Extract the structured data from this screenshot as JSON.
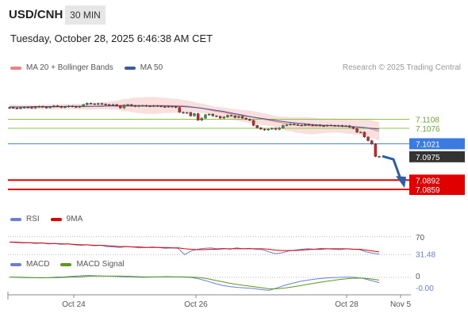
{
  "header": {
    "symbol": "USD/CNH",
    "interval": "30 MIN",
    "datetime": "Tuesday, October 28, 2025 6:46:38 AM CET",
    "credit": "Research © 2025 Trading Central"
  },
  "colors": {
    "bollinger": "#f4b8b8",
    "ma20": "#f08080",
    "ma50": "#3a5a9a",
    "support_resistance": "#e00000",
    "blue_level": "#3b7be0",
    "green_level": "#8bc34a",
    "rsi": "#6b7fd6",
    "rsi_ma": "#e00000",
    "macd": "#6b7fd6",
    "macd_signal": "#5a9a1a",
    "arrow": "#2a5ea8"
  },
  "chart_data": [
    {
      "type": "candlestick",
      "name": "price",
      "legend": [
        "MA 20 + Bollinger Bands",
        "MA 50"
      ],
      "x_ticks": [
        "Oct 24",
        "Oct 26",
        "Oct 28",
        "Nov 5"
      ],
      "ylim": [
        7.08,
        7.125
      ],
      "levels": [
        {
          "value": 7.1108,
          "label": "7.1108",
          "kind": "green"
        },
        {
          "value": 7.1076,
          "label": "7.1076",
          "kind": "green"
        },
        {
          "value": 7.1021,
          "label": "7.1021",
          "kind": "blue"
        },
        {
          "value": 7.0892,
          "label": "7.0892",
          "kind": "red"
        },
        {
          "value": 7.0859,
          "label": "7.0859",
          "kind": "red"
        }
      ],
      "last_price": {
        "value": 7.0975,
        "label": "7.0975"
      },
      "candles_close": [
        7.115,
        7.1148,
        7.1146,
        7.1149,
        7.1151,
        7.115,
        7.1148,
        7.1152,
        7.1154,
        7.1151,
        7.1149,
        7.1152,
        7.1156,
        7.1154,
        7.115,
        7.1152,
        7.1155,
        7.1153,
        7.1151,
        7.1154,
        7.116,
        7.1165,
        7.1163,
        7.1161,
        7.1164,
        7.1162,
        7.116,
        7.1158,
        7.116,
        7.1155,
        7.1148,
        7.1158,
        7.116,
        7.1156,
        7.1154,
        7.1156,
        7.1157,
        7.1155,
        7.1154,
        7.1156,
        7.1155,
        7.1153,
        7.1152,
        7.1154,
        7.1153,
        7.115,
        7.1133,
        7.113,
        7.1132,
        7.112,
        7.1128,
        7.1105,
        7.1112,
        7.1124,
        7.1126,
        7.112,
        7.1118,
        7.1112,
        7.1116,
        7.1122,
        7.112,
        7.1114,
        7.1118,
        7.1112,
        7.1108,
        7.1104,
        7.1086,
        7.1078,
        7.1073,
        7.107,
        7.1073,
        7.1076,
        7.1072,
        7.1077,
        7.1086,
        7.1088,
        7.1091,
        7.1089,
        7.1087,
        7.1086,
        7.109,
        7.1088,
        7.1086,
        7.1088,
        7.1085,
        7.1084,
        7.1087,
        7.1086,
        7.1084,
        7.1086,
        7.1083,
        7.1085,
        7.108,
        7.1075,
        7.1062,
        7.1062,
        7.1045,
        7.1032,
        7.102,
        7.0976,
        7.0975
      ],
      "ma20": [
        7.1152,
        7.1152,
        7.1151,
        7.1151,
        7.1151,
        7.1151,
        7.1151,
        7.1151,
        7.1152,
        7.1152,
        7.1152,
        7.1152,
        7.1153,
        7.1153,
        7.1153,
        7.1153,
        7.1153,
        7.1153,
        7.1153,
        7.1154,
        7.1155,
        7.1156,
        7.1157,
        7.1157,
        7.1158,
        7.1158,
        7.1158,
        7.1158,
        7.1158,
        7.1158,
        7.1157,
        7.1157,
        7.1157,
        7.1157,
        7.1157,
        7.1157,
        7.1157,
        7.1156,
        7.1156,
        7.1156,
        7.1155,
        7.1153,
        7.1151,
        7.1148,
        7.1146,
        7.1143,
        7.1139,
        7.1136,
        7.1134,
        7.1131,
        7.1128,
        7.1125,
        7.1122,
        7.112,
        7.1118,
        7.1116,
        7.1113,
        7.111,
        7.1107,
        7.1104,
        7.1101,
        7.1098,
        7.1095,
        7.1092,
        7.109,
        7.1088,
        7.1087,
        7.1086,
        7.1085,
        7.1084,
        7.1084,
        7.1084,
        7.1085,
        7.1085,
        7.1086,
        7.1085,
        7.1084,
        7.1083,
        7.1082,
        7.1081,
        7.108,
        7.1078,
        7.1074,
        7.107,
        7.1065
      ],
      "ma50": [
        7.1152,
        7.1152,
        7.1152,
        7.1152,
        7.1153,
        7.1153,
        7.1153,
        7.1153,
        7.1153,
        7.1153,
        7.1154,
        7.1154,
        7.1154,
        7.1154,
        7.1154,
        7.1154,
        7.1154,
        7.1155,
        7.1155,
        7.1155,
        7.1155,
        7.1155,
        7.1155,
        7.1155,
        7.1155,
        7.1155,
        7.1155,
        7.1155,
        7.1154,
        7.1154,
        7.1153,
        7.1152,
        7.115,
        7.1148,
        7.1145,
        7.1142,
        7.1139,
        7.1136,
        7.1132,
        7.1128,
        7.1124,
        7.112,
        7.1116,
        7.1113,
        7.111,
        7.1107,
        7.1104,
        7.1101,
        7.1098,
        7.1096,
        7.1094,
        7.1092,
        7.109,
        7.1088,
        7.1087,
        7.1086,
        7.1085,
        7.1084,
        7.1083,
        7.1082,
        7.1081,
        7.1079,
        7.1077,
        7.1075,
        7.1073
      ],
      "bollinger_width": [
        0.0008,
        0.0008,
        0.0008,
        0.0008,
        0.0008,
        0.0008,
        0.0009,
        0.0009,
        0.0009,
        0.0009,
        0.001,
        0.001,
        0.0011,
        0.0012,
        0.0013,
        0.0015,
        0.0018,
        0.0022,
        0.0026,
        0.0028,
        0.003,
        0.003,
        0.0029,
        0.0027,
        0.0025,
        0.0022,
        0.002,
        0.0018,
        0.0017,
        0.0016,
        0.0016,
        0.0017,
        0.0018,
        0.002,
        0.0021,
        0.0022,
        0.0022,
        0.0021,
        0.002,
        0.002,
        0.0022,
        0.0025,
        0.0028,
        0.003,
        0.003,
        0.0028,
        0.0026,
        0.0025,
        0.0025,
        0.0026,
        0.0027,
        0.0028,
        0.003,
        0.0032,
        0.0033
      ]
    },
    {
      "type": "line",
      "name": "rsi",
      "legend": [
        "RSI",
        "9MA"
      ],
      "ylim": [
        0,
        100
      ],
      "levels": [
        {
          "value": 70,
          "label": "70"
        }
      ],
      "current": {
        "value": 31.48,
        "label": "31.48"
      },
      "rsi": [
        58,
        57,
        56,
        57,
        55,
        56,
        54,
        55,
        53,
        54,
        52,
        51,
        52,
        50,
        51,
        48,
        47,
        46,
        48,
        47,
        45,
        46,
        47,
        46,
        44,
        45,
        44,
        30,
        38,
        42,
        44,
        45,
        43,
        44,
        42,
        45,
        43,
        44,
        42,
        41,
        36,
        32,
        34,
        38,
        40,
        42,
        43,
        42,
        44,
        43,
        42,
        41,
        43,
        42,
        41,
        36,
        33,
        31
      ],
      "rsi_ma": [
        58,
        58,
        57,
        57,
        56,
        56,
        55,
        55,
        54,
        54,
        53,
        52,
        52,
        51,
        51,
        50,
        49,
        48,
        48,
        47,
        47,
        46,
        46,
        46,
        46,
        45,
        45,
        43,
        42,
        41,
        41,
        42,
        42,
        43,
        43,
        43,
        43,
        43,
        43,
        43,
        42,
        40,
        39,
        39,
        39,
        40,
        41,
        42,
        42,
        43,
        43,
        43,
        43,
        42,
        42,
        40,
        38,
        36
      ]
    },
    {
      "type": "line",
      "name": "macd",
      "legend": [
        "MACD",
        "MACD Signal"
      ],
      "ylim": [
        -0.006,
        0.003
      ],
      "levels": [
        {
          "value": 0,
          "label": "0"
        }
      ],
      "current": {
        "value": -0.0,
        "label": "-0.00"
      },
      "macd": [
        0.0001,
        0.0,
        -0.0001,
        -0.0001,
        -0.0002,
        -0.0001,
        0.0001,
        0.0002,
        0.0004,
        0.0006,
        0.0007,
        0.0006,
        0.0005,
        0.0004,
        0.0003,
        0.0002,
        0.0001,
        0.0,
        0.0001,
        0.0002,
        0.0003,
        0.0002,
        0.0001,
        0.0,
        -0.0005,
        -0.0013,
        -0.0022,
        -0.003,
        -0.0035,
        -0.0038,
        -0.004,
        -0.0042,
        -0.0046,
        -0.0049,
        -0.004,
        -0.003,
        -0.0022,
        -0.0015,
        -0.001,
        -0.0006,
        -0.0003,
        -0.0001,
        0.0,
        0.0001,
        0.0,
        -0.0004,
        -0.0012,
        -0.002
      ],
      "signal": [
        0.0001,
        0.0001,
        0.0,
        -0.0001,
        -0.0001,
        -0.0001,
        -0.0001,
        0.0,
        0.0001,
        0.0002,
        0.0004,
        0.0005,
        0.0005,
        0.0005,
        0.0005,
        0.0004,
        0.0003,
        0.0002,
        0.0002,
        0.0002,
        0.0002,
        0.0002,
        0.0002,
        0.0001,
        0.0,
        -0.0004,
        -0.001,
        -0.0016,
        -0.0022,
        -0.0027,
        -0.0031,
        -0.0035,
        -0.0039,
        -0.0043,
        -0.0043,
        -0.004,
        -0.0036,
        -0.0031,
        -0.0026,
        -0.0021,
        -0.0016,
        -0.0012,
        -0.0008,
        -0.0005,
        -0.0003,
        -0.0003,
        -0.0006,
        -0.001
      ]
    }
  ]
}
